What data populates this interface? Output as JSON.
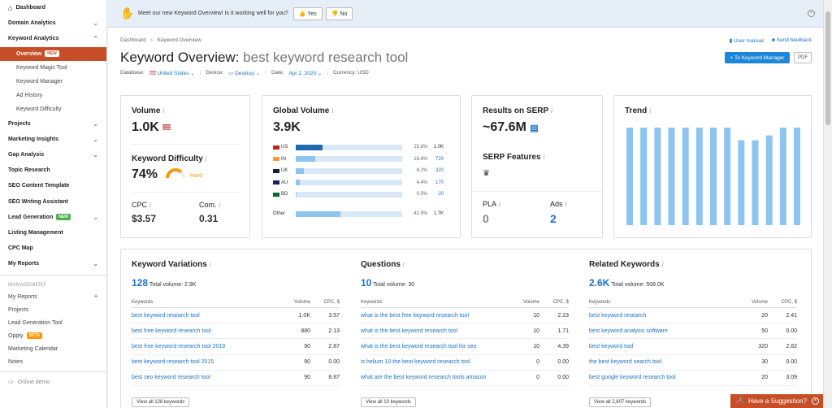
{
  "sidebar": {
    "top": [
      {
        "label": "Dashboard",
        "icon": "home-icon"
      },
      {
        "label": "Domain Analytics"
      },
      {
        "label": "Keyword Analytics"
      }
    ],
    "keyword_sub": [
      {
        "label": "Overview",
        "badge": "NEW",
        "active": true
      },
      {
        "label": "Keyword Magic Tool"
      },
      {
        "label": "Keyword Manager"
      },
      {
        "label": "Ad History"
      },
      {
        "label": "Keyword Difficulty"
      }
    ],
    "sections": [
      {
        "label": "Projects",
        "chev": true
      },
      {
        "label": "Marketing Insights",
        "chev": true
      },
      {
        "label": "Gap Analysis",
        "chev": true
      },
      {
        "label": "Topic Research"
      },
      {
        "label": "SEO Content Template"
      },
      {
        "label": "SEO Writing Assistant"
      },
      {
        "label": "Lead Generation",
        "badge": "NEW",
        "chev": true
      },
      {
        "label": "Listing Management"
      },
      {
        "label": "CPC Map"
      },
      {
        "label": "My Reports",
        "chev": true
      }
    ],
    "management_label": "MANAGEMENT",
    "management": [
      {
        "label": "My Reports",
        "plus": true
      },
      {
        "label": "Projects"
      },
      {
        "label": "Lead Generation Tool"
      },
      {
        "label": "Oppty",
        "badge": "BETA"
      },
      {
        "label": "Marketing Calendar"
      },
      {
        "label": "Notes"
      }
    ],
    "online_demo": "Online demo"
  },
  "banner": {
    "text": "Meet our new Keyword Overview! Is it working well for you?",
    "yes": "Yes",
    "no": "No"
  },
  "breadcrumb": {
    "home": "Dashboard",
    "current": "Keyword Overview"
  },
  "title": {
    "prefix": "Keyword Overview:",
    "keyword": "best keyword research tool"
  },
  "meta": {
    "db_label": "Database:",
    "db": "United States",
    "dev_label": "Device:",
    "dev": "Desktop",
    "date_label": "Date:",
    "date": "Apr 2, 2020",
    "cur_label": "Currency: USD"
  },
  "links": {
    "manual": "User manual",
    "feedback": "Send feedback"
  },
  "buttons": {
    "to_manager": "+ To Keyword Manager",
    "pdf": "PDF"
  },
  "volume": {
    "title": "Volume",
    "value": "1.0K"
  },
  "difficulty": {
    "title": "Keyword Difficulty",
    "value": "74%",
    "label": "Hard",
    "fraction": 0.74
  },
  "cpc": {
    "title": "CPC",
    "value": "$3.57"
  },
  "com": {
    "title": "Com.",
    "value": "0.31"
  },
  "global": {
    "title": "Global Volume",
    "value": "3.9K",
    "rows": [
      {
        "cc": "US",
        "pct": "25.8%",
        "val": "1.0K",
        "fill": 0.258,
        "dark": true
      },
      {
        "cc": "IN",
        "pct": "18.6%",
        "val": "720",
        "fill": 0.186
      },
      {
        "cc": "UK",
        "pct": "8.2%",
        "val": "320",
        "fill": 0.082
      },
      {
        "cc": "AU",
        "pct": "4.4%",
        "val": "170",
        "fill": 0.044
      },
      {
        "cc": "BD",
        "pct": "0.5%",
        "val": "20",
        "fill": 0.005
      }
    ],
    "other": {
      "cc": "Other",
      "pct": "42.5%",
      "val": "1.7K",
      "fill": 0.425
    }
  },
  "serp": {
    "title": "Results on SERP",
    "value": "~67.6M",
    "features_title": "SERP Features",
    "pla_title": "PLA",
    "pla_value": "0",
    "ads_title": "Ads",
    "ads_value": "2"
  },
  "trend": {
    "title": "Trend",
    "values": [
      1,
      1,
      1,
      1,
      1,
      1,
      1,
      1,
      0.87,
      0.87,
      0.92,
      1,
      1
    ]
  },
  "variations": {
    "title": "Keyword Variations",
    "count": "128",
    "total": "Total volume: 2.9K",
    "cols": [
      "Keywords",
      "Volume",
      "CPC, $"
    ],
    "rows": [
      [
        "best keyword research tool",
        "1.0K",
        "3.57"
      ],
      [
        "best free keyword research tool",
        "880",
        "2.13"
      ],
      [
        "best free keyword research tool 2019",
        "90",
        "2.87"
      ],
      [
        "best keyword research tool 2015",
        "90",
        "0.00"
      ],
      [
        "best seo keyword research tool",
        "90",
        "8.87"
      ]
    ],
    "view_all": "View all 128 keywords"
  },
  "questions": {
    "title": "Questions",
    "count": "10",
    "total": "Total volume: 30",
    "cols": [
      "Keywords",
      "Volume",
      "CPC, $"
    ],
    "rows": [
      [
        "what is the best free keyword research tool",
        "10",
        "2.23"
      ],
      [
        "what is the best keyword research tool",
        "10",
        "1.71"
      ],
      [
        "what is the best keyword research tool for seo",
        "10",
        "4.39"
      ],
      [
        "is helium 10 the best keyword research tool",
        "0",
        "0.00"
      ],
      [
        "what are the best keyword research tools amazon",
        "0",
        "0.00"
      ]
    ],
    "view_all": "View all 10 keywords"
  },
  "related": {
    "title": "Related Keywords",
    "count": "2.6K",
    "total": "Total volume: 508.0K",
    "cols": [
      "Keywords",
      "Volume",
      "CPC, $"
    ],
    "rows": [
      [
        "best keyword research",
        "20",
        "2.41"
      ],
      [
        "best keyword analysis software",
        "50",
        "0.00"
      ],
      [
        "best keyword tool",
        "320",
        "2.82"
      ],
      [
        "the best keyword search tool",
        "30",
        "0.00"
      ],
      [
        "best google keyword research tool",
        "20",
        "3.09"
      ]
    ],
    "view_all": "View all 2,607 keywords"
  },
  "suggestion": "Have a Suggestion?",
  "colors": {
    "accent": "#c74f27",
    "blue": "#1a73c8",
    "bar": "#8ec4f0",
    "bar_dark": "#1e6ab3",
    "hard": "#f39c12"
  }
}
